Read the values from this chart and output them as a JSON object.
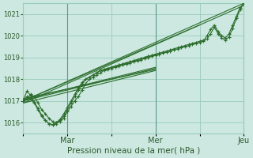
{
  "xlabel": "Pression niveau de la mer( hPa )",
  "bg_color": "#cce8e0",
  "grid_color": "#99ccbb",
  "line_color": "#2d6e2d",
  "ylim": [
    1015.5,
    1021.5
  ],
  "tick_labels_x": [
    "",
    "Mar",
    "",
    "Mer",
    "",
    "Jeu"
  ],
  "tick_positions_x": [
    0,
    24,
    48,
    72,
    96,
    120
  ],
  "yticks": [
    1016,
    1017,
    1018,
    1019,
    1020,
    1021
  ],
  "x_vlines": [
    24,
    72,
    120
  ],
  "detailed_series": [
    {
      "x": [
        0,
        2,
        4,
        6,
        8,
        10,
        12,
        14,
        16,
        18,
        20,
        22,
        24,
        26,
        28,
        30,
        32,
        34,
        36,
        38,
        40,
        42,
        44,
        46,
        48,
        50,
        52,
        54,
        56,
        58,
        60,
        62,
        64,
        66,
        68,
        70,
        72,
        74,
        76,
        78,
        80,
        82,
        84,
        86,
        88,
        90,
        92,
        94,
        96,
        98,
        100,
        102,
        104,
        106,
        108,
        110,
        112,
        114,
        116,
        118,
        120
      ],
      "y": [
        1017.0,
        1017.1,
        1017.3,
        1017.2,
        1016.9,
        1016.6,
        1016.4,
        1016.2,
        1016.05,
        1016.0,
        1016.05,
        1016.2,
        1016.5,
        1016.75,
        1017.0,
        1017.2,
        1017.5,
        1017.8,
        1018.0,
        1018.1,
        1018.2,
        1018.3,
        1018.4,
        1018.45,
        1018.5,
        1018.55,
        1018.6,
        1018.65,
        1018.7,
        1018.75,
        1018.8,
        1018.85,
        1018.9,
        1018.95,
        1019.0,
        1019.05,
        1019.1,
        1019.15,
        1019.2,
        1019.25,
        1019.3,
        1019.35,
        1019.4,
        1019.45,
        1019.5,
        1019.55,
        1019.6,
        1019.65,
        1019.7,
        1019.75,
        1020.0,
        1020.3,
        1020.5,
        1020.2,
        1020.0,
        1019.9,
        1020.1,
        1020.5,
        1020.9,
        1021.3,
        1021.5
      ]
    },
    {
      "x": [
        0,
        2,
        4,
        6,
        8,
        10,
        12,
        14,
        16,
        18,
        20,
        22,
        24,
        26,
        28,
        30,
        32,
        34,
        36,
        38,
        40,
        42,
        44,
        46,
        48,
        50,
        52,
        54,
        56,
        58,
        60,
        62,
        64,
        66,
        68,
        70,
        72,
        74,
        76,
        78,
        80,
        82,
        84,
        86,
        88,
        90,
        92,
        94,
        96,
        98,
        100,
        102,
        104,
        106,
        108,
        110,
        112,
        114,
        116,
        118,
        120
      ],
      "y": [
        1017.0,
        1017.2,
        1017.1,
        1016.9,
        1016.6,
        1016.3,
        1016.1,
        1015.95,
        1015.9,
        1015.95,
        1016.1,
        1016.3,
        1016.6,
        1016.9,
        1017.2,
        1017.5,
        1017.8,
        1018.0,
        1018.1,
        1018.2,
        1018.3,
        1018.4,
        1018.45,
        1018.5,
        1018.55,
        1018.6,
        1018.65,
        1018.7,
        1018.75,
        1018.8,
        1018.85,
        1018.9,
        1018.95,
        1019.0,
        1019.05,
        1019.1,
        1019.15,
        1019.2,
        1019.25,
        1019.3,
        1019.35,
        1019.4,
        1019.45,
        1019.5,
        1019.55,
        1019.6,
        1019.65,
        1019.7,
        1019.75,
        1019.8,
        1019.85,
        1020.1,
        1020.4,
        1020.1,
        1019.9,
        1019.8,
        1019.95,
        1020.35,
        1020.8,
        1021.2,
        1021.5
      ]
    },
    {
      "x": [
        0,
        2,
        4,
        6,
        8,
        10,
        12,
        14,
        16,
        18,
        20,
        22,
        24,
        26,
        28,
        30,
        32,
        34,
        36,
        38,
        40,
        42,
        44,
        46,
        48,
        50,
        52,
        54,
        56,
        58,
        60,
        62,
        64,
        66,
        68,
        70,
        72
      ],
      "y": [
        1017.05,
        1017.45,
        1017.25,
        1016.95,
        1016.65,
        1016.35,
        1016.1,
        1015.95,
        1015.9,
        1016.0,
        1016.15,
        1016.4,
        1016.7,
        1017.0,
        1017.3,
        1017.6,
        1017.85,
        1018.0,
        1018.1,
        1018.2,
        1018.3,
        1018.4,
        1018.45,
        1018.5,
        1018.55,
        1018.6,
        1018.65,
        1018.7,
        1018.75,
        1018.8,
        1018.85,
        1018.9,
        1018.95,
        1019.0,
        1019.05,
        1019.1,
        1019.15
      ]
    }
  ],
  "straight_lines": [
    {
      "x": [
        0,
        72
      ],
      "y": [
        1017.0,
        1018.5
      ]
    },
    {
      "x": [
        0,
        72
      ],
      "y": [
        1016.9,
        1018.4
      ]
    },
    {
      "x": [
        0,
        72
      ],
      "y": [
        1017.05,
        1018.55
      ]
    },
    {
      "x": [
        0,
        72
      ],
      "y": [
        1017.1,
        1018.45
      ]
    },
    {
      "x": [
        0,
        96
      ],
      "y": [
        1017.0,
        1020.5
      ]
    },
    {
      "x": [
        0,
        120
      ],
      "y": [
        1017.0,
        1021.5
      ]
    },
    {
      "x": [
        0,
        120
      ],
      "y": [
        1016.9,
        1021.4
      ]
    }
  ]
}
